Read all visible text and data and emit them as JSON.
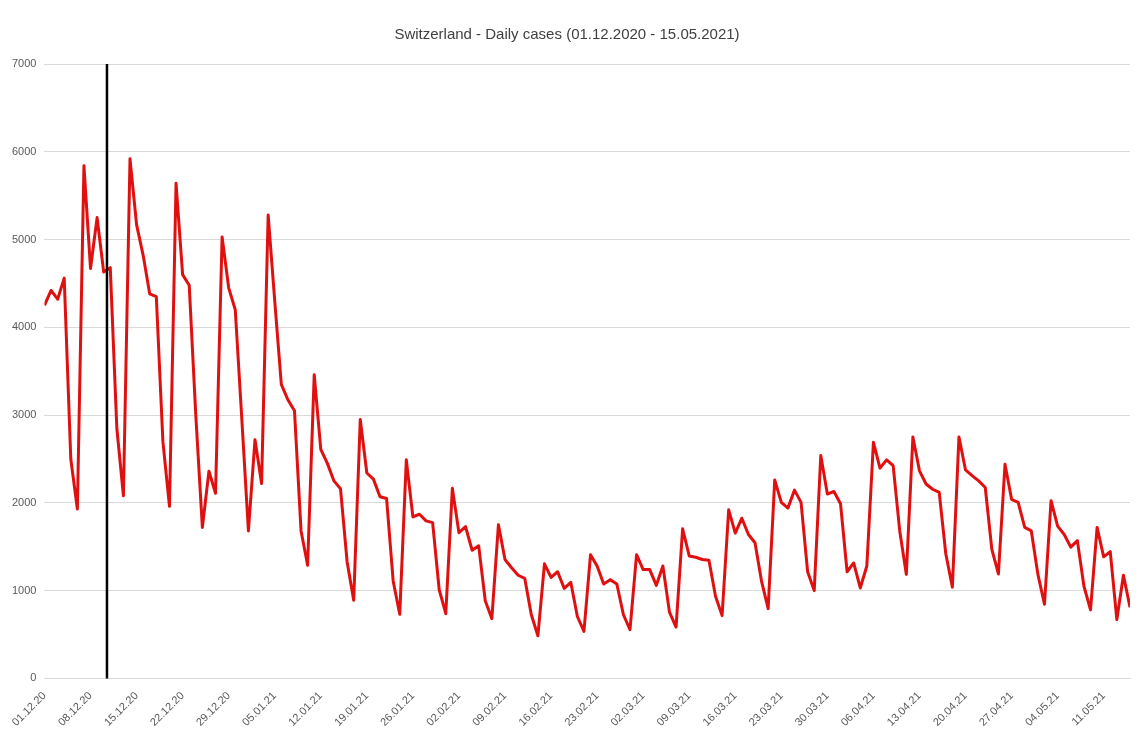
{
  "chart_data": {
    "type": "line",
    "title": "Switzerland - Daily cases (01.12.2020 - 15.05.2021)",
    "x": [
      "2020-12-01",
      "2020-12-02",
      "2020-12-03",
      "2020-12-04",
      "2020-12-05",
      "2020-12-06",
      "2020-12-07",
      "2020-12-08",
      "2020-12-09",
      "2020-12-10",
      "2020-12-11",
      "2020-12-12",
      "2020-12-13",
      "2020-12-14",
      "2020-12-15",
      "2020-12-16",
      "2020-12-17",
      "2020-12-18",
      "2020-12-19",
      "2020-12-20",
      "2020-12-21",
      "2020-12-22",
      "2020-12-23",
      "2020-12-24",
      "2020-12-25",
      "2020-12-26",
      "2020-12-27",
      "2020-12-28",
      "2020-12-29",
      "2020-12-30",
      "2020-12-31",
      "2021-01-01",
      "2021-01-02",
      "2021-01-03",
      "2021-01-04",
      "2021-01-05",
      "2021-01-06",
      "2021-01-07",
      "2021-01-08",
      "2021-01-09",
      "2021-01-10",
      "2021-01-11",
      "2021-01-12",
      "2021-01-13",
      "2021-01-14",
      "2021-01-15",
      "2021-01-16",
      "2021-01-17",
      "2021-01-18",
      "2021-01-19",
      "2021-01-20",
      "2021-01-21",
      "2021-01-22",
      "2021-01-23",
      "2021-01-24",
      "2021-01-25",
      "2021-01-26",
      "2021-01-27",
      "2021-01-28",
      "2021-01-29",
      "2021-01-30",
      "2021-01-31",
      "2021-02-01",
      "2021-02-02",
      "2021-02-03",
      "2021-02-04",
      "2021-02-05",
      "2021-02-06",
      "2021-02-07",
      "2021-02-08",
      "2021-02-09",
      "2021-02-10",
      "2021-02-11",
      "2021-02-12",
      "2021-02-13",
      "2021-02-14",
      "2021-02-15",
      "2021-02-16",
      "2021-02-17",
      "2021-02-18",
      "2021-02-19",
      "2021-02-20",
      "2021-02-21",
      "2021-02-22",
      "2021-02-23",
      "2021-02-24",
      "2021-02-25",
      "2021-02-26",
      "2021-02-27",
      "2021-02-28",
      "2021-03-01",
      "2021-03-02",
      "2021-03-03",
      "2021-03-04",
      "2021-03-05",
      "2021-03-06",
      "2021-03-07",
      "2021-03-08",
      "2021-03-09",
      "2021-03-10",
      "2021-03-11",
      "2021-03-12",
      "2021-03-13",
      "2021-03-14",
      "2021-03-15",
      "2021-03-16",
      "2021-03-17",
      "2021-03-18",
      "2021-03-19",
      "2021-03-20",
      "2021-03-21",
      "2021-03-22",
      "2021-03-23",
      "2021-03-24",
      "2021-03-25",
      "2021-03-26",
      "2021-03-27",
      "2021-03-28",
      "2021-03-29",
      "2021-03-30",
      "2021-03-31",
      "2021-04-01",
      "2021-04-02",
      "2021-04-03",
      "2021-04-04",
      "2021-04-05",
      "2021-04-06",
      "2021-04-07",
      "2021-04-08",
      "2021-04-09",
      "2021-04-10",
      "2021-04-11",
      "2021-04-12",
      "2021-04-13",
      "2021-04-14",
      "2021-04-15",
      "2021-04-16",
      "2021-04-17",
      "2021-04-18",
      "2021-04-19",
      "2021-04-20",
      "2021-04-21",
      "2021-04-22",
      "2021-04-23",
      "2021-04-24",
      "2021-04-25",
      "2021-04-26",
      "2021-04-27",
      "2021-04-28",
      "2021-04-29",
      "2021-04-30",
      "2021-05-01",
      "2021-05-02",
      "2021-05-03",
      "2021-05-04",
      "2021-05-05",
      "2021-05-06",
      "2021-05-07",
      "2021-05-08",
      "2021-05-09",
      "2021-05-10",
      "2021-05-11",
      "2021-05-12",
      "2021-05-13",
      "2021-05-14",
      "2021-05-15"
    ],
    "series": [
      {
        "color": "#e01010",
        "values": [
          4250,
          4420,
          4320,
          4560,
          2500,
          1930,
          5840,
          4670,
          5250,
          4630,
          4680,
          2850,
          2080,
          5920,
          5170,
          4820,
          4380,
          4350,
          2700,
          1960,
          5640,
          4600,
          4480,
          3000,
          1720,
          2360,
          2110,
          5030,
          4450,
          4200,
          2950,
          1680,
          2720,
          2220,
          5280,
          4300,
          3350,
          3175,
          3050,
          1680,
          1290,
          3460,
          2610,
          2450,
          2250,
          2160,
          1330,
          890,
          2950,
          2340,
          2270,
          2070,
          2050,
          1110,
          730,
          2490,
          1840,
          1870,
          1795,
          1775,
          1010,
          737,
          2165,
          1660,
          1730,
          1460,
          1510,
          885,
          680,
          1750,
          1355,
          1260,
          1175,
          1140,
          725,
          485,
          1305,
          1150,
          1215,
          1025,
          1095,
          705,
          535,
          1410,
          1280,
          1075,
          1125,
          1075,
          725,
          555,
          1410,
          1240,
          1240,
          1060,
          1280,
          755,
          585,
          1705,
          1395,
          1380,
          1355,
          1345,
          935,
          715,
          1920,
          1655,
          1825,
          1640,
          1545,
          1105,
          795,
          2260,
          2005,
          1940,
          2145,
          2005,
          1215,
          1000,
          2540,
          2100,
          2130,
          1990,
          1215,
          1315,
          1030,
          1280,
          2690,
          2395,
          2490,
          2425,
          1680,
          1185,
          2750,
          2365,
          2215,
          2155,
          2120,
          1420,
          1040,
          2750,
          2375,
          2310,
          2250,
          2175,
          1470,
          1190,
          2440,
          2040,
          2005,
          1720,
          1680,
          1185,
          845,
          2025,
          1735,
          1640,
          1495,
          1570,
          1050,
          780,
          1720,
          1385,
          1445,
          670,
          1175,
          810
        ]
      }
    ],
    "xlim": [
      "2020-12-01",
      "2021-05-15"
    ],
    "xticks": [
      {
        "value": "2020-12-01",
        "label": "01.12.20"
      },
      {
        "value": "2020-12-08",
        "label": "08.12.20"
      },
      {
        "value": "2020-12-15",
        "label": "15.12.20"
      },
      {
        "value": "2020-12-22",
        "label": "22.12.20"
      },
      {
        "value": "2020-12-29",
        "label": "29.12.20"
      },
      {
        "value": "2021-01-05",
        "label": "05.01.21"
      },
      {
        "value": "2021-01-12",
        "label": "12.01.21"
      },
      {
        "value": "2021-01-19",
        "label": "19.01.21"
      },
      {
        "value": "2021-01-26",
        "label": "26.01.21"
      },
      {
        "value": "2021-02-02",
        "label": "02.02.21"
      },
      {
        "value": "2021-02-09",
        "label": "09.02.21"
      },
      {
        "value": "2021-02-16",
        "label": "16.02.21"
      },
      {
        "value": "2021-02-23",
        "label": "23.02.21"
      },
      {
        "value": "2021-03-02",
        "label": "02.03.21"
      },
      {
        "value": "2021-03-09",
        "label": "09.03.21"
      },
      {
        "value": "2021-03-16",
        "label": "16.03.21"
      },
      {
        "value": "2021-03-23",
        "label": "23.03.21"
      },
      {
        "value": "2021-03-30",
        "label": "30.03.21"
      },
      {
        "value": "2021-04-06",
        "label": "06.04.21"
      },
      {
        "value": "2021-04-13",
        "label": "13.04.21"
      },
      {
        "value": "2021-04-20",
        "label": "20.04.21"
      },
      {
        "value": "2021-04-27",
        "label": "27.04.21"
      },
      {
        "value": "2021-05-04",
        "label": "04.05.21"
      },
      {
        "value": "2021-05-11",
        "label": "11.05.21"
      }
    ],
    "ylim": [
      0,
      7000
    ],
    "yticks": [
      0,
      1000,
      2000,
      3000,
      4000,
      5000,
      6000,
      7000
    ],
    "ref_lines": [
      {
        "axis": "x",
        "value": "2020-12-10T12:00",
        "color": "#000000"
      }
    ],
    "grid": "y",
    "marker": "none",
    "line_style": "solid"
  }
}
